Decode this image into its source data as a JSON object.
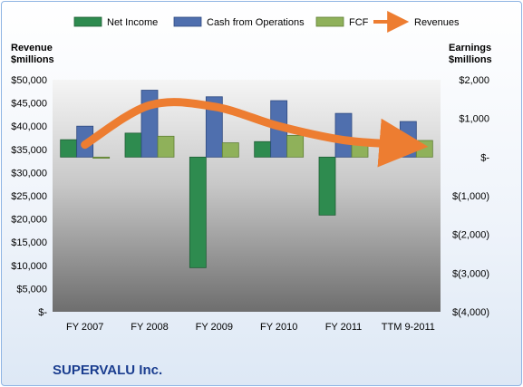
{
  "chart_data": {
    "type": "bar",
    "title": "SUPERVALU Inc.",
    "categories": [
      "FY 2007",
      "FY 2008",
      "FY 2009",
      "FY 2010",
      "FY 2011",
      "TTM 9-2011"
    ],
    "left_axis": {
      "label_line1": "Revenue",
      "label_line2": "$millions",
      "ylim": [
        0,
        50000
      ],
      "ticks": [
        0,
        5000,
        10000,
        15000,
        20000,
        25000,
        30000,
        35000,
        40000,
        45000,
        50000
      ],
      "tick_labels": [
        "$-",
        "$5,000",
        "$10,000",
        "$15,000",
        "$20,000",
        "$25,000",
        "$30,000",
        "$35,000",
        "$40,000",
        "$45,000",
        "$50,000"
      ]
    },
    "right_axis": {
      "label_line1": "Earnings",
      "label_line2": "$millions",
      "ylim": [
        -4000,
        2000
      ],
      "ticks": [
        -4000,
        -3000,
        -2000,
        -1000,
        0,
        1000,
        2000
      ],
      "tick_labels": [
        "$(4,000)",
        "$(3,000)",
        "$(2,000)",
        "$(1,000)",
        "$-",
        "$1,000",
        "$2,000"
      ]
    },
    "series": [
      {
        "name": "Net Income",
        "axis": "right",
        "kind": "bar",
        "color": "#2e8b4f",
        "values": [
          450,
          620,
          -2860,
          400,
          -1500,
          25
        ]
      },
      {
        "name": "Cash from Operations",
        "axis": "right",
        "kind": "bar",
        "color": "#4f6fae",
        "values": [
          800,
          1730,
          1560,
          1460,
          1130,
          920
        ]
      },
      {
        "name": "FCF",
        "axis": "right",
        "kind": "bar",
        "color": "#8fb15a",
        "values": [
          -30,
          540,
          370,
          560,
          350,
          430
        ]
      },
      {
        "name": "Revenues",
        "axis": "left",
        "kind": "line",
        "color": "#ed7d31",
        "values": [
          36000,
          44500,
          44200,
          40000,
          37000,
          36100
        ]
      }
    ],
    "legend_position": "top",
    "grid": false
  }
}
